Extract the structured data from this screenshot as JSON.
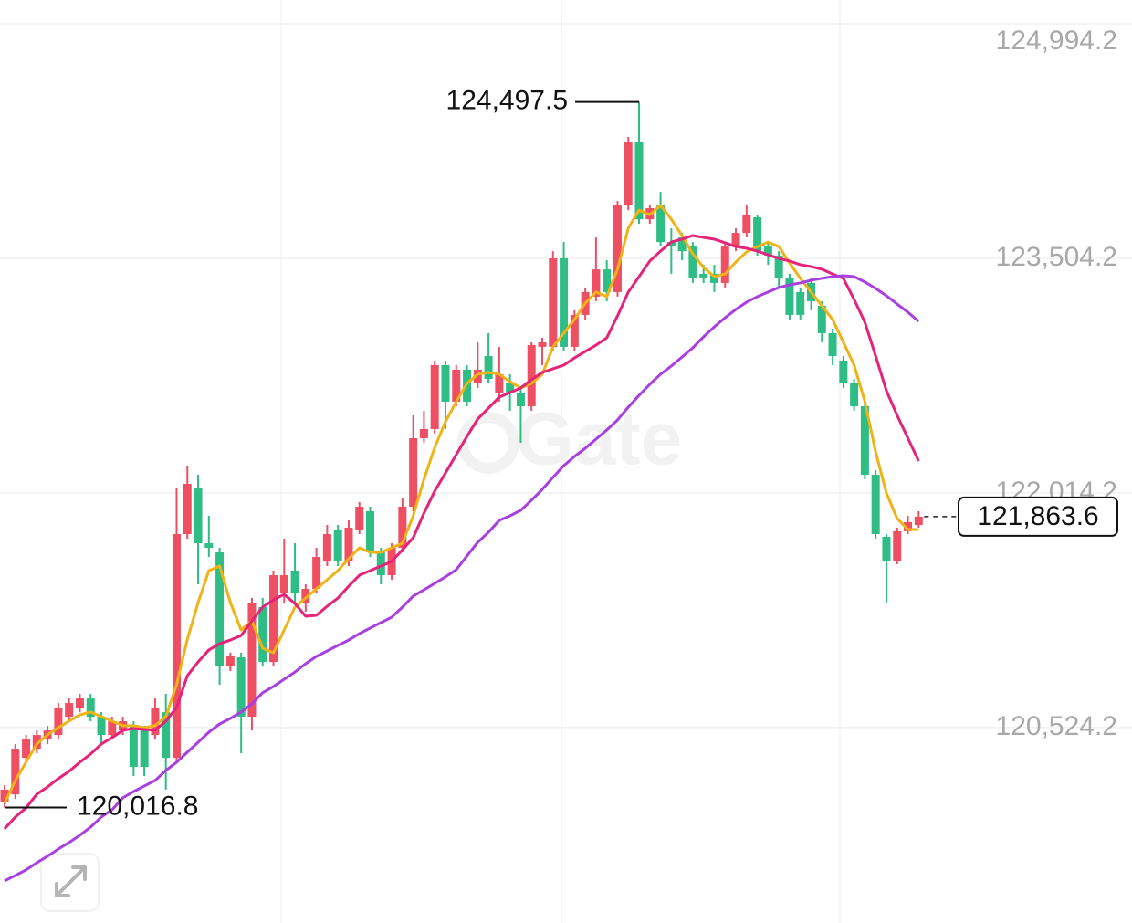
{
  "chart_data": {
    "type": "candlestick",
    "watermark": "Gate",
    "up_color": "#ee4f62",
    "down_color": "#2ebd85",
    "ylim": [
      119283,
      125145
    ],
    "yticks": [
      {
        "value": 124994.2,
        "label": "124,994.2"
      },
      {
        "value": 123504.2,
        "label": "123,504.2"
      },
      {
        "value": 122014.2,
        "label": "122,014.2"
      },
      {
        "value": 120524.2,
        "label": "120,524.2"
      }
    ],
    "grid": true,
    "high": {
      "value": 124497.5,
      "label": "124,497.5"
    },
    "low": {
      "value": 120016.8,
      "label": "120,016.8"
    },
    "last": {
      "value": 121863.6,
      "label": "121,863.6"
    },
    "candles": [
      [
        120054,
        120159,
        120016.8,
        120130
      ],
      [
        120100,
        120419,
        120071,
        120390
      ],
      [
        120332,
        120477,
        120303,
        120448
      ],
      [
        120390,
        120506,
        120361,
        120477
      ],
      [
        120448,
        120535,
        120419,
        120506
      ],
      [
        120477,
        120680,
        120448,
        120651
      ],
      [
        120593,
        120709,
        120564,
        120680
      ],
      [
        120651,
        120738,
        120622,
        120709
      ],
      [
        120709,
        120738,
        120564,
        120593
      ],
      [
        120593,
        120622,
        120419,
        120477
      ],
      [
        120477,
        120593,
        120448,
        120564
      ],
      [
        120506,
        120593,
        120477,
        120564
      ],
      [
        120535,
        120564,
        120216,
        120274
      ],
      [
        120506,
        120535,
        120216,
        120274
      ],
      [
        120477,
        120709,
        120448,
        120651
      ],
      [
        120622,
        120738,
        120130,
        120332
      ],
      [
        120332,
        122043,
        120303,
        121753
      ],
      [
        121753,
        122188,
        121724,
        122072
      ],
      [
        122043,
        122130,
        121434,
        121695
      ],
      [
        121695,
        121869,
        121608,
        121666
      ],
      [
        121637,
        121666,
        120796,
        120912
      ],
      [
        120912,
        120999,
        120883,
        120982
      ],
      [
        120970,
        120999,
        120361,
        120593
      ],
      [
        120593,
        121347,
        120506,
        121318
      ],
      [
        121289,
        121347,
        120912,
        120941
      ],
      [
        120941,
        121521,
        120912,
        121492
      ],
      [
        121376,
        121724,
        121318,
        121492
      ],
      [
        121521,
        121695,
        121318,
        121376
      ],
      [
        121318,
        121434,
        121260,
        121405
      ],
      [
        121405,
        121666,
        121376,
        121608
      ],
      [
        121579,
        121811,
        121550,
        121753
      ],
      [
        121782,
        121811,
        121550,
        121579
      ],
      [
        121579,
        121840,
        121550,
        121794
      ],
      [
        121782,
        121956,
        121753,
        121927
      ],
      [
        121898,
        121927,
        121608,
        121637
      ],
      [
        121637,
        121666,
        121434,
        121492
      ],
      [
        121492,
        121695,
        121463,
        121666
      ],
      [
        121666,
        121985,
        121637,
        121927
      ],
      [
        121927,
        122507,
        121898,
        122362
      ],
      [
        122362,
        122536,
        122333,
        122420
      ],
      [
        122420,
        122855,
        122391,
        122826
      ],
      [
        122826,
        122855,
        122420,
        122594
      ],
      [
        122594,
        122826,
        122565,
        122797
      ],
      [
        122797,
        122826,
        122565,
        122594
      ],
      [
        122710,
        122971,
        122681,
        122797
      ],
      [
        122884,
        123029,
        122710,
        122739
      ],
      [
        122652,
        122942,
        122594,
        122768
      ],
      [
        122710,
        122768,
        122536,
        122652
      ],
      [
        122652,
        122681,
        122333,
        122565
      ],
      [
        122565,
        122971,
        122536,
        122953
      ],
      [
        122942,
        123000,
        122826,
        122971
      ],
      [
        122942,
        123550,
        122913,
        123504
      ],
      [
        123504,
        123608,
        122913,
        122942
      ],
      [
        122942,
        123174,
        122913,
        123145
      ],
      [
        123145,
        123319,
        123116,
        123290
      ],
      [
        123261,
        123637,
        123232,
        123434
      ],
      [
        123434,
        123492,
        123232,
        123290
      ],
      [
        123290,
        123869,
        123261,
        123840
      ],
      [
        123840,
        124275,
        123811,
        124246
      ],
      [
        124246,
        124497.5,
        123724,
        123753
      ],
      [
        123753,
        123840,
        123724,
        123823
      ],
      [
        123840,
        123927,
        123579,
        123608
      ],
      [
        123608,
        123695,
        123406,
        123579
      ],
      [
        123637,
        123666,
        123492,
        123550
      ],
      [
        123579,
        123608,
        123348,
        123377
      ],
      [
        123406,
        123463,
        123348,
        123377
      ],
      [
        123406,
        123463,
        123290,
        123348
      ],
      [
        123348,
        123608,
        123319,
        123579
      ],
      [
        123579,
        123695,
        123550,
        123666
      ],
      [
        123666,
        123840,
        123637,
        123782
      ],
      [
        123765,
        123782,
        123521,
        123550
      ],
      [
        123579,
        123608,
        123463,
        123521
      ],
      [
        123521,
        123550,
        123319,
        123377
      ],
      [
        123377,
        123406,
        123116,
        123145
      ],
      [
        123290,
        123319,
        123116,
        123145
      ],
      [
        123348,
        123377,
        123174,
        123232
      ],
      [
        123203,
        123232,
        122971,
        123029
      ],
      [
        123029,
        123058,
        122826,
        122884
      ],
      [
        122855,
        122884,
        122681,
        122710
      ],
      [
        122710,
        122739,
        122536,
        122565
      ],
      [
        122565,
        122594,
        122101,
        122130
      ],
      [
        122130,
        122159,
        121724,
        121753
      ],
      [
        121736,
        121753,
        121318,
        121579
      ],
      [
        121579,
        121794,
        121562,
        121771
      ],
      [
        121771,
        121869,
        121753,
        121829
      ],
      [
        121811,
        121898,
        121794,
        121863.6
      ]
    ],
    "series": [
      {
        "color": "#f0b315",
        "values": [
          120043,
          120188,
          120304,
          120420,
          120478,
          120524,
          120565,
          120605,
          120623,
          120594,
          120565,
          120536,
          120536,
          120524,
          120536,
          120594,
          120797,
          121086,
          121318,
          121521,
          121550,
          121318,
          121144,
          121202,
          121028,
          120999,
          121144,
          121289,
          121347,
          121405,
          121463,
          121521,
          121597,
          121666,
          121637,
          121637,
          121666,
          121695,
          121869,
          122101,
          122304,
          122466,
          122594,
          122710,
          122768,
          122780,
          122768,
          122721,
          122681,
          122710,
          122768,
          122942,
          123029,
          123116,
          123220,
          123290,
          123261,
          123435,
          123696,
          123811,
          123782,
          123840,
          123753,
          123649,
          123533,
          123446,
          123388,
          123405,
          123481,
          123545,
          123579,
          123608,
          123579,
          123475,
          123377,
          123290,
          123203,
          123116,
          122971,
          122826,
          122594,
          122275,
          122014,
          121852,
          121782,
          121782
        ]
      },
      {
        "color": "#e5237b",
        "values": [
          119881,
          119956,
          120014,
          120101,
          120147,
          120200,
          120246,
          120304,
          120356,
          120420,
          120460,
          120507,
          120518,
          120512,
          120507,
          120565,
          120652,
          120854,
          120941,
          121017,
          121057,
          121080,
          121109,
          121202,
          121289,
          121335,
          121370,
          121312,
          121231,
          121237,
          121295,
          121347,
          121422,
          121492,
          121521,
          121550,
          121579,
          121654,
          121730,
          121886,
          122026,
          122141,
          122257,
          122373,
          122484,
          122553,
          122623,
          122652,
          122681,
          122733,
          122780,
          122803,
          122826,
          122872,
          122913,
          122953,
          123000,
          123139,
          123290,
          123388,
          123487,
          123550,
          123608,
          123626,
          123649,
          123637,
          123626,
          123603,
          123579,
          123568,
          123550,
          123527,
          123504,
          123487,
          123464,
          123452,
          123435,
          123405,
          123377,
          123243,
          123098,
          122884,
          122664,
          122507,
          122362,
          122217
        ]
      },
      {
        "color": "#a93fe0",
        "values": [
          119550,
          119585,
          119620,
          119666,
          119707,
          119753,
          119794,
          119840,
          119892,
          119956,
          120002,
          120078,
          120118,
          120153,
          120188,
          120252,
          120304,
          120368,
          120431,
          120495,
          120547,
          120582,
          120623,
          120675,
          120745,
          120785,
          120831,
          120877,
          120930,
          120976,
          121011,
          121046,
          121080,
          121121,
          121156,
          121191,
          121225,
          121289,
          121359,
          121399,
          121440,
          121481,
          121527,
          121614,
          121701,
          121765,
          121840,
          121869,
          121904,
          121968,
          122037,
          122113,
          122188,
          122246,
          122298,
          122356,
          122414,
          122478,
          122559,
          122634,
          122704,
          122768,
          122820,
          122878,
          122936,
          123006,
          123069,
          123127,
          123180,
          123226,
          123261,
          123290,
          123319,
          123336,
          123348,
          123365,
          123377,
          123388,
          123394,
          123388,
          123354,
          123313,
          123267,
          123214,
          123162,
          123104
        ]
      }
    ]
  }
}
